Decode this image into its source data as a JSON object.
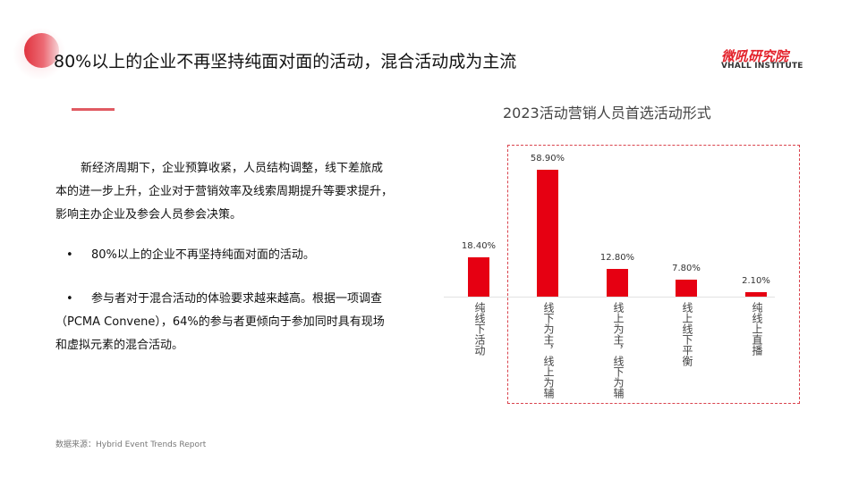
{
  "header": {
    "title": "80%以上的企业不再坚持纯面对面的活动，混合活动成为主流",
    "logo_cn": "微吼研究院",
    "logo_en": "VHALL INSTITUTE"
  },
  "body": {
    "paragraph": "新经济周期下，企业预算收紧，人员结构调整，线下差旅成本的进一步上升，企业对于营销效率及线索周期提升等要求提升，影响主办企业及参会人员参会决策。",
    "bullets": [
      {
        "marker": "•",
        "text": "80%以上的企业不再坚持纯面对面的活动。"
      },
      {
        "marker": "•",
        "text": "参与者对于混合活动的体验要求越来越高。根据一项调查（PCMA Convene），64%的参与者更倾向于参加同时具有现场和虚拟元素的混合活动。"
      }
    ],
    "source": "数据来源：Hybrid Event Trends Report"
  },
  "chart_data": {
    "type": "bar",
    "title": "2023活动营销人员首选活动形式",
    "categories": [
      "纯线下活动",
      "线下为主，线上为辅",
      "线上为主，线下为辅",
      "线上线下平衡",
      "纯线上直播"
    ],
    "values": [
      18.4,
      58.9,
      12.8,
      7.8,
      2.1
    ],
    "labels": [
      "18.40%",
      "58.90%",
      "12.80%",
      "7.80%",
      "2.10%"
    ],
    "xlabel": "",
    "ylabel": "",
    "ylim": [
      0,
      60
    ],
    "grid": false,
    "legend": "none",
    "bar_color": "#e60012",
    "highlight_box_color": "#d9434d"
  }
}
